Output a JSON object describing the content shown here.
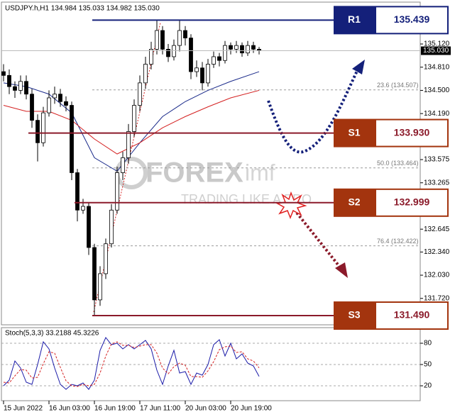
{
  "chart_data": [
    {
      "type": "candlestick",
      "title": "USDJPY.h,H1  134.984 135.033 134.982 135.030",
      "x": [
        0,
        1,
        2,
        3,
        4,
        5,
        6,
        7,
        8,
        9,
        10,
        11,
        12,
        13,
        14,
        15,
        16,
        17,
        18,
        19,
        20,
        21,
        22,
        23,
        24,
        25,
        26,
        27,
        28,
        29,
        30,
        31,
        32,
        33,
        34,
        35,
        36,
        37,
        38,
        39,
        40,
        41,
        42,
        43,
        44,
        45
      ],
      "open": [
        134.75,
        134.7,
        134.55,
        134.5,
        134.62,
        134.45,
        134.1,
        133.8,
        134.2,
        134.4,
        134.45,
        134.35,
        134.3,
        133.4,
        132.9,
        132.95,
        132.4,
        131.7,
        132.05,
        132.45,
        132.9,
        133.4,
        133.6,
        133.95,
        134.3,
        134.6,
        134.85,
        135.05,
        135.3,
        135.05,
        134.95,
        135.1,
        135.3,
        135.2,
        134.75,
        134.8,
        134.6,
        134.85,
        134.95,
        134.9,
        135.1,
        135.05,
        135.1,
        135.0,
        135.1,
        135.05
      ],
      "high": [
        134.85,
        134.78,
        134.62,
        134.7,
        134.7,
        134.52,
        134.18,
        134.28,
        134.5,
        134.55,
        134.52,
        134.42,
        134.35,
        133.45,
        133.05,
        133.0,
        132.45,
        132.15,
        132.52,
        132.98,
        133.48,
        133.68,
        134.05,
        134.38,
        134.7,
        134.95,
        135.15,
        135.44,
        135.36,
        135.12,
        135.18,
        135.44,
        135.36,
        135.25,
        134.9,
        134.88,
        134.92,
        135.02,
        135.0,
        135.16,
        135.14,
        135.16,
        135.14,
        135.16,
        135.15,
        135.08
      ],
      "low": [
        134.62,
        134.45,
        134.4,
        134.45,
        134.38,
        134.0,
        133.55,
        133.75,
        134.15,
        134.32,
        134.28,
        134.22,
        133.3,
        132.75,
        132.85,
        132.3,
        131.49,
        131.62,
        131.98,
        132.4,
        132.85,
        133.3,
        133.52,
        133.88,
        134.22,
        134.52,
        134.78,
        134.98,
        134.98,
        134.88,
        134.9,
        135.02,
        135.1,
        134.65,
        134.68,
        134.5,
        134.55,
        134.8,
        134.82,
        134.86,
        134.98,
        135.0,
        134.95,
        134.96,
        135.0,
        134.98
      ],
      "close": [
        134.7,
        134.55,
        134.5,
        134.62,
        134.45,
        134.1,
        133.8,
        134.2,
        134.4,
        134.45,
        134.35,
        134.3,
        133.4,
        132.9,
        132.95,
        132.4,
        131.7,
        132.05,
        132.45,
        132.9,
        133.4,
        133.6,
        133.95,
        134.3,
        134.6,
        134.85,
        135.05,
        135.3,
        135.05,
        134.95,
        135.1,
        135.3,
        135.2,
        134.75,
        134.8,
        134.6,
        134.85,
        134.95,
        134.9,
        135.1,
        135.05,
        135.1,
        135.0,
        135.1,
        135.05,
        135.03
      ],
      "xlim": [
        -0.4,
        78
      ],
      "ylim": [
        131.367,
        135.632
      ],
      "xticks": [
        {
          "value": 0,
          "label": "15 Jun 2022"
        },
        {
          "value": 8,
          "label": "16 Jun 03:00"
        },
        {
          "value": 16,
          "label": "16 Jun 19:00"
        },
        {
          "value": 24,
          "label": "17 Jun 11:00"
        },
        {
          "value": 32,
          "label": "20 Jun 03:00"
        },
        {
          "value": 40,
          "label": "20 Jun 19:00"
        }
      ],
      "yticks": [
        {
          "value": 135.12,
          "label": "135.120"
        },
        {
          "value": 134.81,
          "label": "134.810"
        },
        {
          "value": 134.5,
          "label": "134.500"
        },
        {
          "value": 134.19,
          "label": "134.190"
        },
        133.575,
        133.265,
        132.645,
        {
          "value": 132.34,
          "label": "132.340"
        },
        {
          "value": 132.03,
          "label": "132.030"
        },
        {
          "value": 131.72,
          "label": "131.720"
        }
      ],
      "current_price": {
        "value": 135.03,
        "label": "135.030"
      },
      "overlays": [
        {
          "color": "#1a2a8a",
          "x": [
            0,
            4,
            8,
            12,
            16,
            20,
            24,
            28,
            32,
            36,
            40,
            45
          ],
          "values": [
            134.6,
            134.55,
            134.45,
            134.2,
            133.6,
            133.42,
            133.8,
            134.15,
            134.35,
            134.5,
            134.62,
            134.75
          ]
        },
        {
          "color": "#d42020",
          "x": [
            0,
            4,
            8,
            12,
            16,
            20,
            24,
            28,
            32,
            36,
            40,
            45
          ],
          "values": [
            134.3,
            134.22,
            134.22,
            134.1,
            133.85,
            133.65,
            133.8,
            134.0,
            134.15,
            134.28,
            134.4,
            134.5
          ]
        }
      ],
      "fib_levels": [
        {
          "value": 134.507,
          "label": "23.6 (134.507)"
        },
        {
          "value": 133.464,
          "label": "50.0 (133.464)"
        },
        {
          "value": 132.422,
          "label": "76.4 (132.422)"
        }
      ],
      "levels": {
        "names": [
          "R1",
          "S1",
          "S2",
          "S3"
        ],
        "values": [
          135.439,
          133.93,
          132.999,
          131.49
        ],
        "value_labels": [
          "135.439",
          "133.930",
          "132.999",
          "131.490"
        ],
        "colors": [
          "#14207a",
          "#8b1a2a",
          "#8b1a2a",
          "#8b1a2a"
        ],
        "box_colors": [
          "#14207a",
          "#a3340e",
          "#a3340e",
          "#a3340e"
        ]
      },
      "watermark": {
        "brand": "FOREX",
        "brand_suffix": "imf",
        "tagline": "TRADING LIKE A PRO"
      }
    },
    {
      "type": "line",
      "title": "Stoch(5,3,3) 33.2188 45.3226",
      "x": [
        0,
        1,
        2,
        3,
        4,
        5,
        6,
        7,
        8,
        9,
        10,
        11,
        12,
        13,
        14,
        15,
        16,
        17,
        18,
        19,
        20,
        21,
        22,
        23,
        24,
        25,
        26,
        27,
        28,
        29,
        30,
        31,
        32,
        33,
        34,
        35,
        36,
        37,
        38,
        39,
        40,
        41,
        42,
        43,
        44,
        45
      ],
      "series": [
        {
          "color": "#1a1aa8",
          "values": [
            20,
            28,
            55,
            45,
            25,
            22,
            50,
            82,
            72,
            45,
            22,
            15,
            22,
            20,
            24,
            15,
            28,
            70,
            88,
            78,
            80,
            72,
            78,
            72,
            78,
            84,
            72,
            42,
            22,
            48,
            70,
            38,
            40,
            22,
            38,
            35,
            50,
            78,
            85,
            62,
            80,
            58,
            65,
            52,
            48,
            33.2188
          ]
        },
        {
          "color": "#d42020",
          "dashed": true,
          "values": [
            25,
            24,
            34,
            43,
            42,
            31,
            32,
            51,
            68,
            66,
            46,
            27,
            20,
            19,
            22,
            20,
            22,
            38,
            62,
            79,
            82,
            77,
            77,
            74,
            76,
            78,
            78,
            66,
            45,
            37,
            47,
            52,
            49,
            33,
            33,
            32,
            41,
            54,
            71,
            75,
            76,
            67,
            68,
            58,
            55,
            45.3226
          ]
        }
      ],
      "ylim": [
        0,
        100
      ],
      "yticks": [
        20,
        50,
        80
      ]
    }
  ]
}
